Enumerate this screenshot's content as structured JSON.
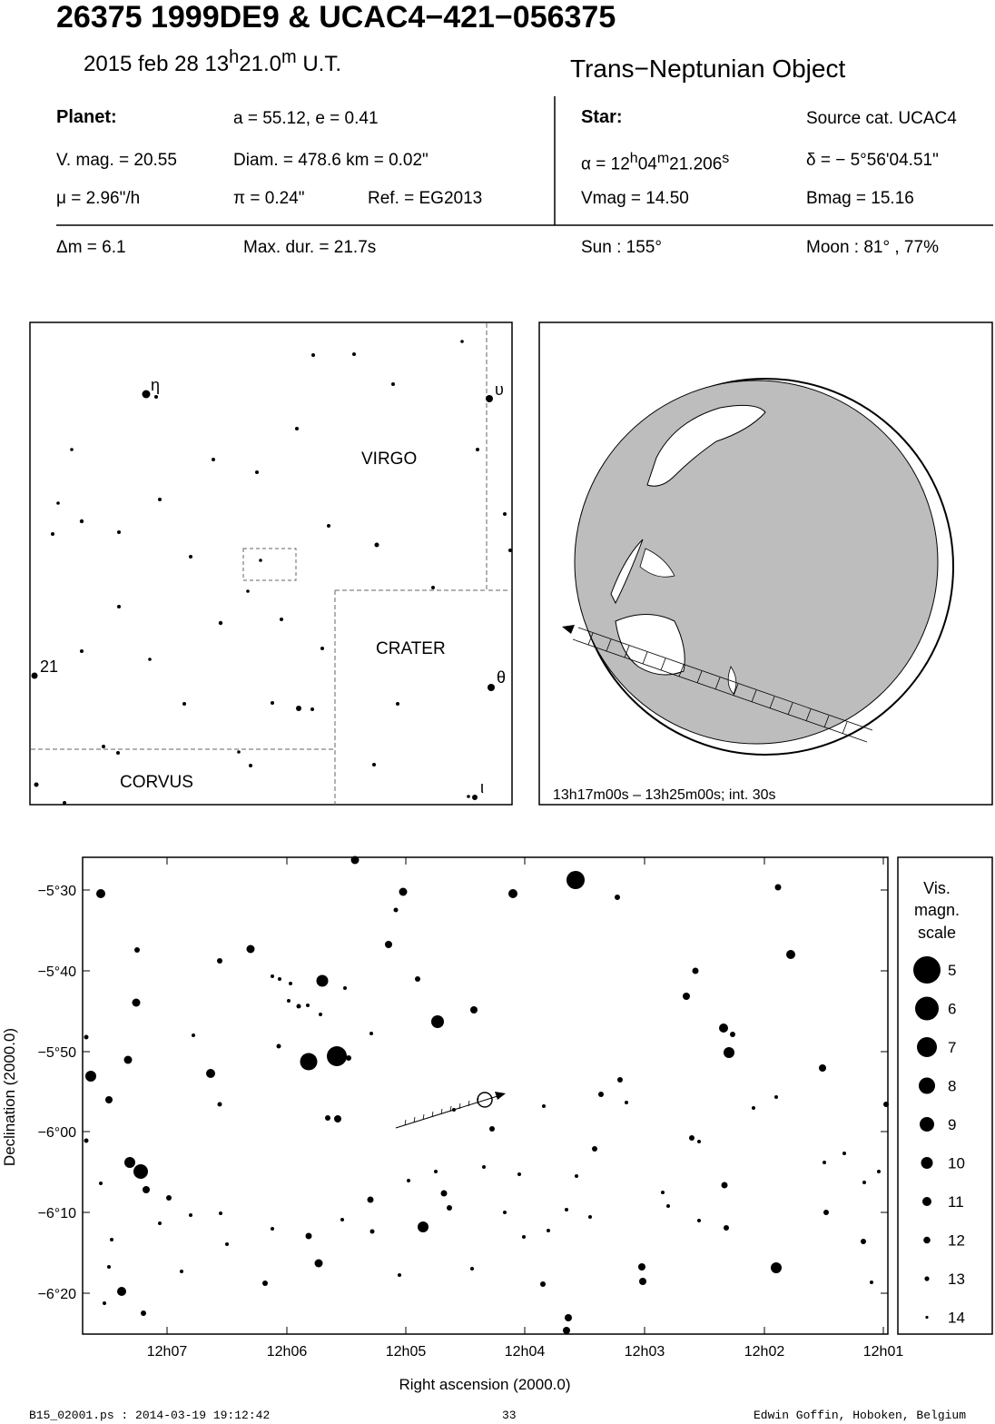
{
  "header": {
    "title": "26375 1999DE9  &  UCAC4−421−056375",
    "date": "2015 feb 28  13",
    "date_h": "h",
    "date_min": "21.0",
    "date_m": "m",
    "date_ut": " U.T.",
    "object_type": "Trans−Neptunian Object"
  },
  "planet": {
    "label": "Planet:",
    "orbit": "a = 55.12, e = 0.41",
    "vmag": "V. mag. = 20.55",
    "diam": "Diam. = 478.6 km = 0.02\"",
    "mu": "μ =  2.96\"/h",
    "pi": "π =  0.24\"",
    "ref": "Ref. = EG2013"
  },
  "star": {
    "label": "Star:",
    "source": "Source cat.  UCAC4",
    "ra_prefix": "α = 12",
    "ra_h": "h",
    "ra_min": "04",
    "ra_m": "m",
    "ra_sec": "21.206",
    "ra_s": "s",
    "dec": "δ = − 5°56'04.51\"",
    "vmag": "Vmag = 14.50",
    "bmag": "Bmag = 15.16"
  },
  "event": {
    "dm": "Δm = 6.1",
    "maxdur": "Max. dur. = 21.7s",
    "sun": "Sun : 155°",
    "moon": "Moon :  81° , 77%"
  },
  "finder": {
    "constellations": [
      "VIRGO",
      "CRATER",
      "CORVUS"
    ],
    "star_labels": [
      "η",
      "υ",
      "21",
      "θ",
      "ι"
    ]
  },
  "globe": {
    "caption": "13h17m00s – 13h25m00s; int. 30s",
    "colors": {
      "land": "#bdbdbd"
    }
  },
  "chart": {
    "ylabel": "Declination (2000.0)",
    "xlabel": "Right ascension (2000.0)",
    "yticks": [
      "−5°30",
      "−5°40",
      "−5°50",
      "−6°00",
      "−6°10",
      "−6°20"
    ],
    "xticks": [
      "12h07",
      "12h06",
      "12h05",
      "12h04",
      "12h03",
      "12h02",
      "12h01"
    ]
  },
  "scale": {
    "title_lines": [
      "Vis.",
      "magn.",
      "scale"
    ],
    "magnitudes": [
      "5",
      "6",
      "7",
      "8",
      "9",
      "10",
      "11",
      "12",
      "13",
      "14"
    ]
  },
  "footer": {
    "file": "B15_02001.ps : 2014-03-19 19:12:42",
    "page": "33",
    "author": "Edwin Goffin, Hoboken, Belgium"
  }
}
